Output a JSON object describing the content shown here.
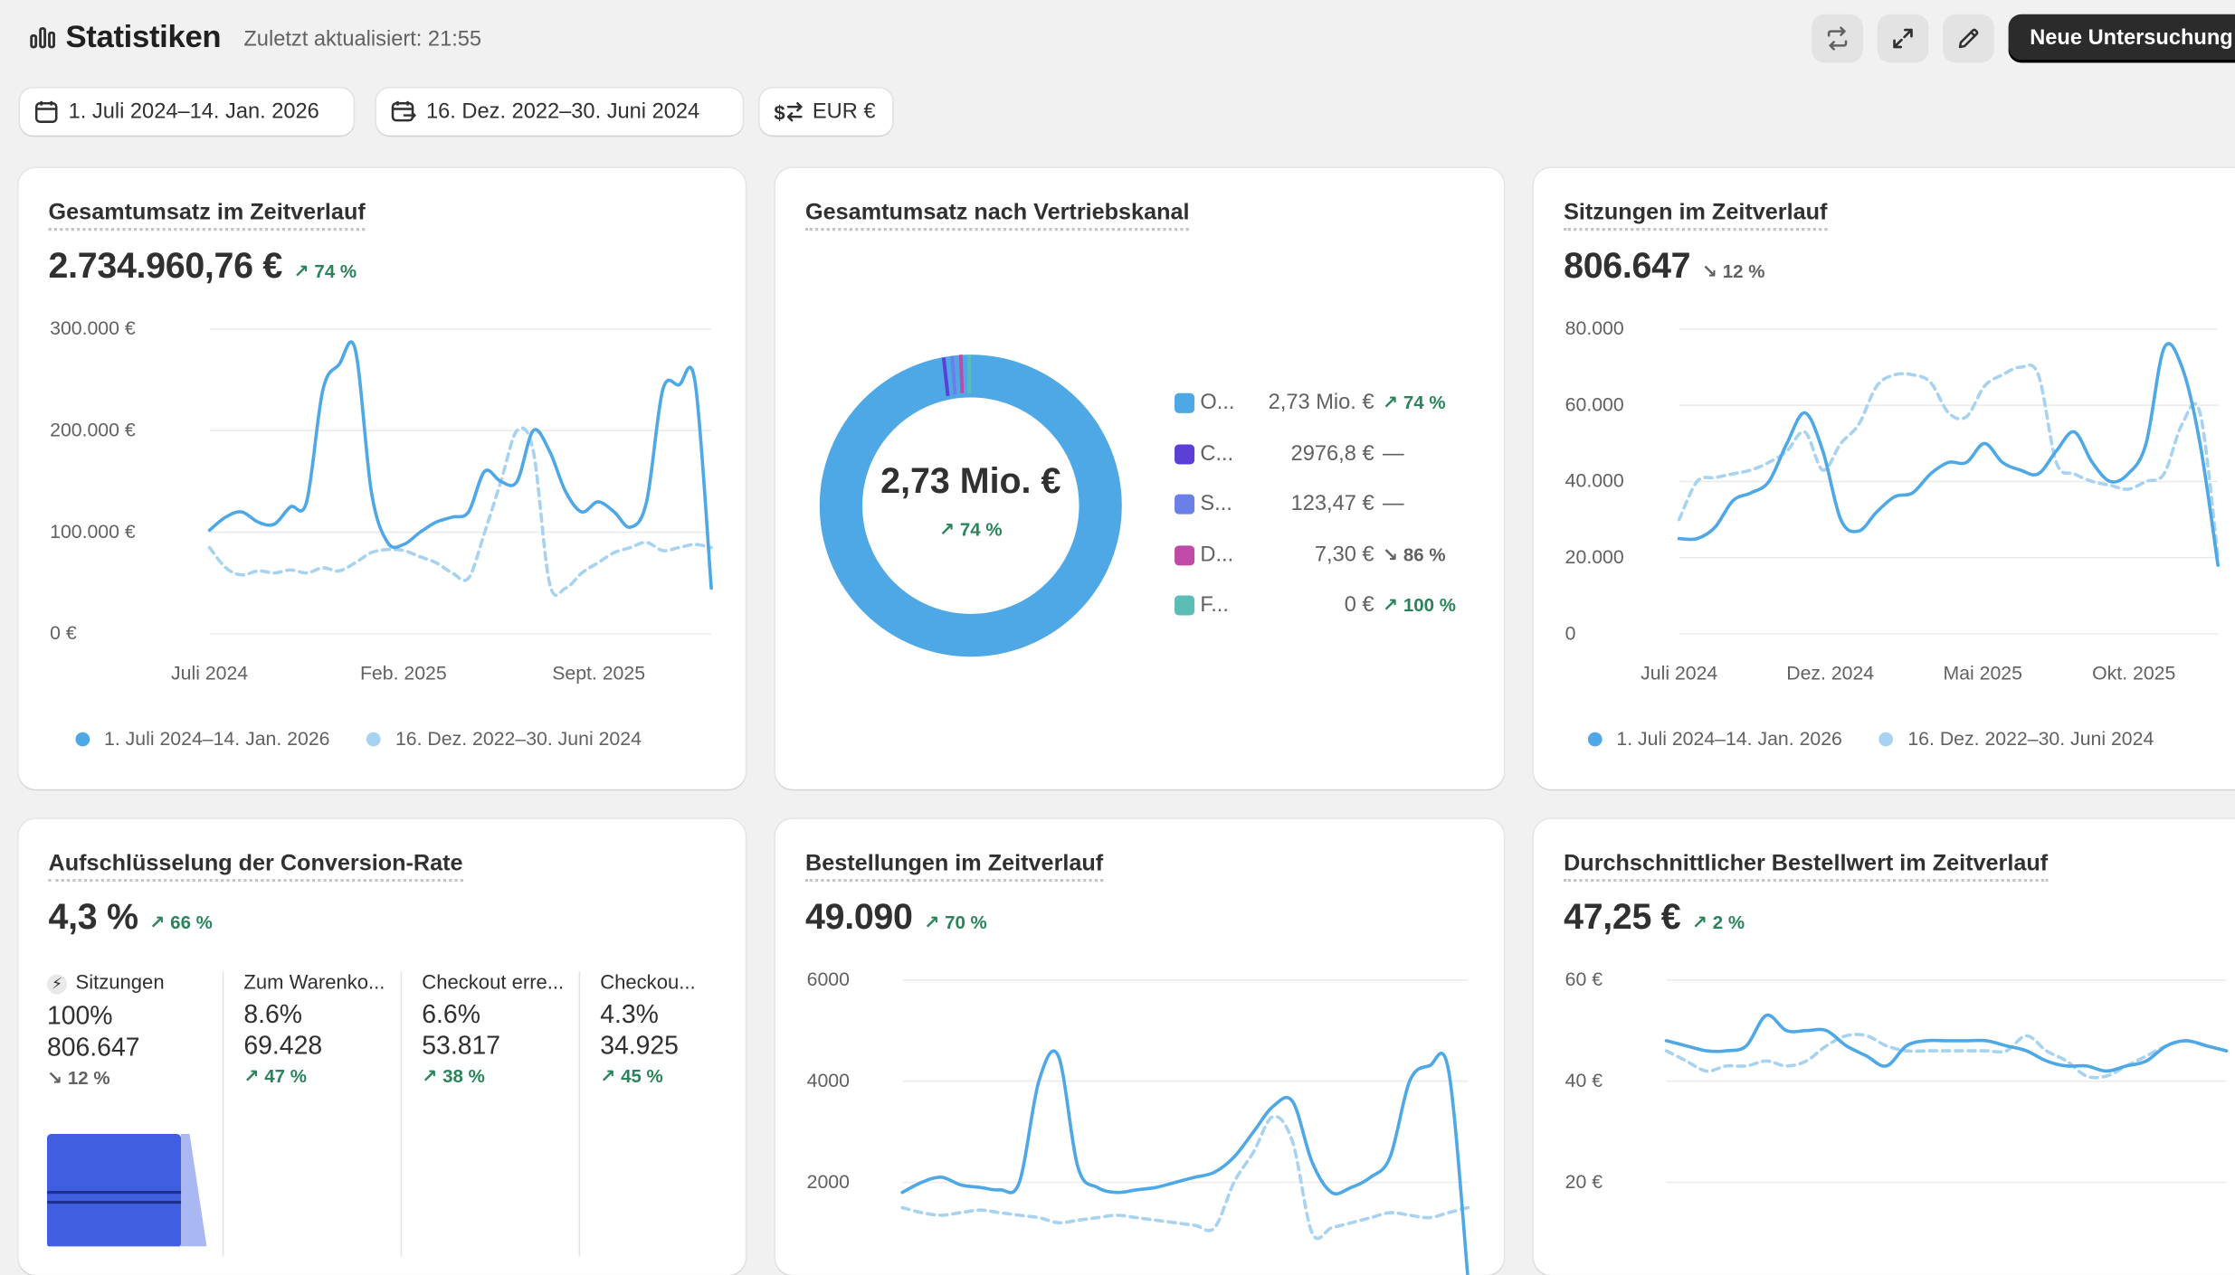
{
  "header": {
    "title": "Statistiken",
    "updated": "Zuletzt aktualisiert: 21:55",
    "new_button": "Neue Untersuchung"
  },
  "filters": {
    "date_range": "1. Juli 2024–14. Jan. 2026",
    "compare_range": "16. Dez. 2022–30. Juni 2024",
    "currency": "EUR €"
  },
  "colors": {
    "primary_series": "#4ea8e6",
    "compare_series": "#a8d3f0",
    "positive": "#29845a",
    "funnel": "#3f5fe0"
  },
  "cards": {
    "revenue": {
      "title": "Gesamtumsatz im Zeitverlauf",
      "value": "2.734.960,76 €",
      "delta": "74 %",
      "legend_primary": "1. Juli 2024–14. Jan. 2026",
      "legend_compare": "16. Dez. 2022–30. Juni 2024"
    },
    "channels": {
      "title": "Gesamtumsatz nach Vertriebskanal",
      "center_value": "2,73 Mio. €",
      "center_delta": "74 %",
      "items": [
        {
          "name": "O...",
          "value": "2,73 Mio. €",
          "delta": "74 %",
          "trend": "up",
          "color": "#4ea8e6"
        },
        {
          "name": "C...",
          "value": "2976,8 €",
          "delta": "—",
          "trend": "none",
          "color": "#5b3fd6"
        },
        {
          "name": "S...",
          "value": "123,47 €",
          "delta": "—",
          "trend": "none",
          "color": "#6b7fe8"
        },
        {
          "name": "D...",
          "value": "7,30 €",
          "delta": "86 %",
          "trend": "down",
          "color": "#c04aa8"
        },
        {
          "name": "F...",
          "value": "0 €",
          "delta": "100 %",
          "trend": "up",
          "color": "#5bbdb5"
        }
      ]
    },
    "sessions": {
      "title": "Sitzungen im Zeitverlauf",
      "value": "806.647",
      "delta": "12 %",
      "legend_primary": "1. Juli 2024–14. Jan. 2026",
      "legend_compare": "16. Dez. 2022–30. Juni 2024"
    },
    "conversion": {
      "title": "Aufschlüsselung der Conversion-Rate",
      "value": "4,3 %",
      "delta": "66 %",
      "steps": [
        {
          "label": "Sitzungen",
          "pct": "100%",
          "value": "806.647",
          "delta": "12 %",
          "trend": "down"
        },
        {
          "label": "Zum Warenko...",
          "pct": "8.6%",
          "value": "69.428",
          "delta": "47 %",
          "trend": "up"
        },
        {
          "label": "Checkout erre...",
          "pct": "6.6%",
          "value": "53.817",
          "delta": "38 %",
          "trend": "up"
        },
        {
          "label": "Checkou...",
          "pct": "4.3%",
          "value": "34.925",
          "delta": "45 %",
          "trend": "up"
        }
      ]
    },
    "orders": {
      "title": "Bestellungen im Zeitverlauf",
      "value": "49.090",
      "delta": "70 %"
    },
    "aov": {
      "title": "Durchschnittlicher Bestellwert im Zeitverlauf",
      "value": "47,25 €",
      "delta": "2 %"
    }
  },
  "chart_data": [
    {
      "id": "revenue",
      "type": "line",
      "title": "Gesamtumsatz im Zeitverlauf",
      "y_ticks": [
        "300.000 €",
        "200.000 €",
        "100.000 €",
        "0 €"
      ],
      "x_ticks": [
        "Juli 2024",
        "Feb. 2025",
        "Sept. 2025"
      ],
      "ylim": [
        0,
        300000
      ],
      "grid": true,
      "legend": "bottom",
      "series": [
        {
          "name": "1. Juli 2024–14. Jan. 2026",
          "style": "solid",
          "values": [
            102000,
            115000,
            120000,
            110000,
            108000,
            125000,
            130000,
            240000,
            265000,
            280000,
            140000,
            90000,
            88000,
            100000,
            110000,
            115000,
            120000,
            160000,
            150000,
            150000,
            200000,
            180000,
            140000,
            120000,
            130000,
            120000,
            105000,
            130000,
            240000,
            245000,
            248000,
            45000
          ]
        },
        {
          "name": "16. Dez. 2022–30. Juni 2024",
          "style": "dashed",
          "values": [
            85000,
            65000,
            58000,
            62000,
            60000,
            63000,
            60000,
            65000,
            62000,
            70000,
            80000,
            83000,
            82000,
            76000,
            70000,
            60000,
            55000,
            100000,
            150000,
            200000,
            180000,
            50000,
            45000,
            60000,
            70000,
            80000,
            85000,
            90000,
            82000,
            85000,
            88000,
            85000
          ]
        }
      ]
    },
    {
      "id": "channels",
      "type": "pie",
      "title": "Gesamtumsatz nach Vertriebskanal",
      "slices": [
        {
          "label": "O...",
          "value": 2730000
        },
        {
          "label": "C...",
          "value": 2976.8
        },
        {
          "label": "S...",
          "value": 123.47
        },
        {
          "label": "D...",
          "value": 7.3
        },
        {
          "label": "F...",
          "value": 0
        }
      ]
    },
    {
      "id": "sessions",
      "type": "line",
      "title": "Sitzungen im Zeitverlauf",
      "y_ticks": [
        "80.000",
        "60.000",
        "40.000",
        "20.000",
        "0"
      ],
      "x_ticks": [
        "Juli 2024",
        "Dez. 2024",
        "Mai 2025",
        "Okt. 2025"
      ],
      "ylim": [
        0,
        80000
      ],
      "grid": true,
      "legend": "bottom",
      "series": [
        {
          "name": "1. Juli 2024–14. Jan. 2026",
          "style": "solid",
          "values": [
            25000,
            25000,
            28000,
            35000,
            37000,
            40000,
            50000,
            58000,
            48000,
            30000,
            27000,
            32000,
            36000,
            37000,
            42000,
            45000,
            45000,
            50000,
            45000,
            43000,
            42000,
            48000,
            53000,
            45000,
            40000,
            42000,
            50000,
            75000,
            70000,
            50000,
            18000
          ]
        },
        {
          "name": "16. Dez. 2022–30. Juni 2024",
          "style": "dashed",
          "values": [
            30000,
            40000,
            41000,
            42000,
            43000,
            45000,
            48000,
            53000,
            43000,
            50000,
            55000,
            65000,
            68000,
            68000,
            66000,
            58000,
            57000,
            65000,
            68000,
            70000,
            68000,
            45000,
            42000,
            40000,
            39000,
            38000,
            40000,
            42000,
            55000,
            58000,
            20000
          ]
        }
      ]
    },
    {
      "id": "orders",
      "type": "line",
      "title": "Bestellungen im Zeitverlauf",
      "y_ticks": [
        "6000",
        "4000",
        "2000"
      ],
      "ylim": [
        0,
        6000
      ],
      "grid": true,
      "series": [
        {
          "name": "primary",
          "style": "solid",
          "values": [
            1800,
            2000,
            2100,
            1950,
            1900,
            1850,
            2000,
            4000,
            4500,
            2300,
            1900,
            1800,
            1850,
            1900,
            2000,
            2100,
            2200,
            2500,
            3000,
            3500,
            3600,
            2400,
            1800,
            1900,
            2100,
            2500,
            4000,
            4300,
            4200,
            50
          ]
        },
        {
          "name": "compare",
          "style": "dashed",
          "values": [
            1500,
            1400,
            1350,
            1400,
            1450,
            1400,
            1350,
            1300,
            1200,
            1250,
            1300,
            1350,
            1300,
            1250,
            1200,
            1150,
            1100,
            2000,
            2600,
            3300,
            2800,
            1000,
            1100,
            1200,
            1300,
            1400,
            1350,
            1300,
            1400,
            1500
          ]
        }
      ]
    },
    {
      "id": "aov",
      "type": "line",
      "title": "Durchschnittlicher Bestellwert im Zeitverlauf",
      "y_ticks": [
        "60 €",
        "40 €",
        "20 €"
      ],
      "ylim": [
        0,
        60
      ],
      "grid": true,
      "series": [
        {
          "name": "primary",
          "style": "solid",
          "values": [
            48,
            47,
            46,
            46,
            47,
            53,
            50,
            50,
            50,
            47,
            45,
            43,
            47,
            48,
            48,
            48,
            48,
            47,
            46,
            44,
            43,
            43,
            42,
            43,
            44,
            47,
            48,
            47,
            46
          ]
        },
        {
          "name": "compare",
          "style": "dashed",
          "values": [
            46,
            44,
            42,
            43,
            43,
            44,
            43,
            44,
            47,
            49,
            49,
            47,
            46,
            46,
            46,
            46,
            46,
            46,
            49,
            46,
            44,
            41,
            41,
            43,
            45,
            47,
            48,
            47,
            46
          ]
        }
      ]
    }
  ]
}
